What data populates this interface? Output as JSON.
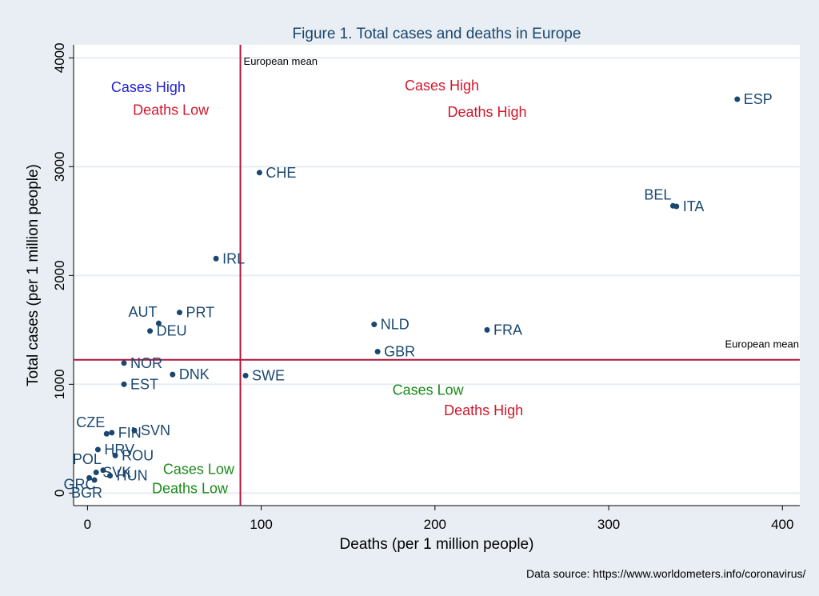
{
  "chart_data": {
    "type": "scatter",
    "title": "Figure 1. Total cases and deaths in Europe",
    "xlabel": "Deaths (per 1 million people)",
    "ylabel": "Total cases (per 1 million people)",
    "xlim": [
      -8,
      410
    ],
    "ylim": [
      -115,
      4120
    ],
    "xticks": [
      0,
      100,
      200,
      300,
      400
    ],
    "yticks": [
      0,
      1000,
      2000,
      3000,
      4000
    ],
    "grid": true,
    "points": [
      {
        "label": "ESP",
        "x": 374,
        "y": 3620,
        "pos": "right"
      },
      {
        "label": "CHE",
        "x": 99,
        "y": 2945,
        "pos": "right"
      },
      {
        "label": "BEL",
        "x": 337,
        "y": 2640,
        "pos": "above-left"
      },
      {
        "label": "ITA",
        "x": 339,
        "y": 2635,
        "pos": "right"
      },
      {
        "label": "IRL",
        "x": 74,
        "y": 2155,
        "pos": "right"
      },
      {
        "label": "AUT",
        "x": 41,
        "y": 1560,
        "pos": "above-left"
      },
      {
        "label": "PRT",
        "x": 53,
        "y": 1660,
        "pos": "right"
      },
      {
        "label": "DEU",
        "x": 36,
        "y": 1490,
        "pos": "right"
      },
      {
        "label": "NLD",
        "x": 165,
        "y": 1550,
        "pos": "right"
      },
      {
        "label": "FRA",
        "x": 230,
        "y": 1500,
        "pos": "right"
      },
      {
        "label": "GBR",
        "x": 167,
        "y": 1300,
        "pos": "right"
      },
      {
        "label": "NOR",
        "x": 21,
        "y": 1195,
        "pos": "right"
      },
      {
        "label": "DNK",
        "x": 49,
        "y": 1090,
        "pos": "right"
      },
      {
        "label": "SWE",
        "x": 91,
        "y": 1080,
        "pos": "right"
      },
      {
        "label": "EST",
        "x": 21,
        "y": 1000,
        "pos": "right"
      },
      {
        "label": "CZE",
        "x": 11,
        "y": 545,
        "pos": "above-left"
      },
      {
        "label": "FIN",
        "x": 14,
        "y": 555,
        "pos": "right"
      },
      {
        "label": "SVN",
        "x": 27,
        "y": 575,
        "pos": "right"
      },
      {
        "label": "HRV",
        "x": 6,
        "y": 400,
        "pos": "right"
      },
      {
        "label": "ROU",
        "x": 16,
        "y": 345,
        "pos": "right"
      },
      {
        "label": "POL",
        "x": 9,
        "y": 210,
        "pos": "above-left"
      },
      {
        "label": "SVK",
        "x": 5,
        "y": 190,
        "pos": "right"
      },
      {
        "label": "HUN",
        "x": 13,
        "y": 160,
        "pos": "right"
      },
      {
        "label": "GRC",
        "x": 1,
        "y": 140,
        "pos": "left"
      },
      {
        "label": "BGR",
        "x": 4,
        "y": 120,
        "pos": "below-left"
      }
    ],
    "mean_x": 88,
    "mean_y": 1225,
    "mean_label": "European mean",
    "quadrant_labels": [
      {
        "text": "Cases High",
        "x": 35,
        "y": 3685,
        "color": "#1f1fd6",
        "anchor": "middle"
      },
      {
        "text": "Deaths Low",
        "x": 48,
        "y": 3475,
        "color": "#d0182c",
        "anchor": "middle"
      },
      {
        "text": "Cases High",
        "x": 204,
        "y": 3700,
        "color": "#d0182c",
        "anchor": "middle"
      },
      {
        "text": "Deaths High",
        "x": 230,
        "y": 3460,
        "color": "#d0182c",
        "anchor": "middle"
      },
      {
        "text": "Cases Low",
        "x": 196,
        "y": 905,
        "color": "#1a8a1a",
        "anchor": "middle"
      },
      {
        "text": "Deaths High",
        "x": 228,
        "y": 715,
        "color": "#d0182c",
        "anchor": "middle"
      },
      {
        "text": "Cases Low",
        "x": 64,
        "y": 175,
        "color": "#1a8a1a",
        "anchor": "middle"
      },
      {
        "text": "Deaths Low",
        "x": 59,
        "y": 0,
        "color": "#1a8a1a",
        "anchor": "middle"
      }
    ]
  },
  "source_note": "Data source: https://www.worldometers.info/coronavirus/"
}
